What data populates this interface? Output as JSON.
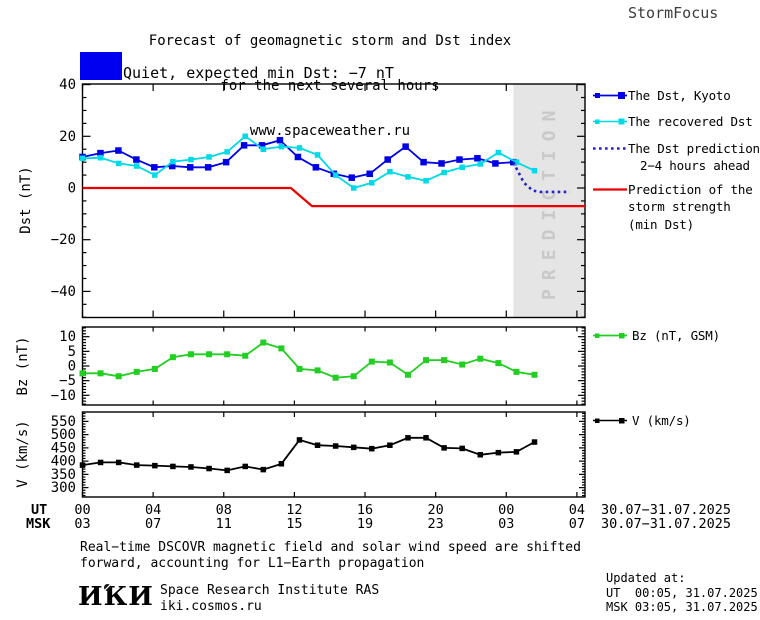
{
  "header": {
    "title_line1": "Forecast of geomagnetic storm and Dst index",
    "title_line2": "for the next several hours",
    "title_line3": "www.spaceweather.ru",
    "brand": "StormFocus"
  },
  "status": {
    "label": "Quiet, expected min Dst: −7 nT"
  },
  "colors": {
    "status_blue": "#0000F0",
    "kyoto_blue": "#0000E6",
    "recovered_cyan": "#00D9E8",
    "prediction_blue": "#2222CC",
    "storm_red": "#EE0000",
    "bz_green": "#21CE21",
    "v_black": "#000000",
    "band_gray": "#E5E5E5",
    "band_text_gray": "#C9C9C9"
  },
  "legend_main": {
    "kyoto": "The Dst, Kyoto",
    "recovered": "The recovered Dst",
    "prediction_line1": "The Dst prediction",
    "prediction_line2": "2−4 hours ahead",
    "storm_line1": "Prediction of the",
    "storm_line2": "storm strength",
    "storm_line3": "(min Dst)"
  },
  "legend_bz": "Bz (nT, GSM)",
  "legend_v": "V (km/s)",
  "time_axis": {
    "ut_label": "UT",
    "msk_label": "MSK",
    "ticks": [
      {
        "h": 0,
        "ut": "00",
        "msk": "03"
      },
      {
        "h": 4,
        "ut": "04",
        "msk": "07"
      },
      {
        "h": 8,
        "ut": "08",
        "msk": "11"
      },
      {
        "h": 12,
        "ut": "12",
        "msk": "15"
      },
      {
        "h": 16,
        "ut": "16",
        "msk": "19"
      },
      {
        "h": 20,
        "ut": "20",
        "msk": "23"
      },
      {
        "h": 24,
        "ut": "00",
        "msk": "03"
      },
      {
        "h": 28,
        "ut": "04",
        "msk": "07"
      }
    ],
    "ut_date": "30.07−31.07.2025",
    "msk_date": "30.07−31.07.2025"
  },
  "chart_data": [
    {
      "type": "line",
      "panel": "dst",
      "ylabel": "Dst (nT)",
      "ylim": [
        -50,
        40
      ],
      "yticks": [
        {
          "v": 40,
          "label": "40"
        },
        {
          "v": 20,
          "label": "20"
        },
        {
          "v": 0,
          "label": "0"
        },
        {
          "v": -20,
          "label": "−20"
        },
        {
          "v": -40,
          "label": "−40"
        }
      ],
      "y_minor_step": 5,
      "xlim_hours": [
        0,
        28.46
      ],
      "x_tick_hours_utc": [
        "00",
        "04",
        "08",
        "12",
        "16",
        "20",
        "00",
        "04"
      ],
      "prediction_band": {
        "t_start": 24.4,
        "label": "PREDICTION"
      },
      "series": [
        {
          "name": "The Dst, Kyoto",
          "color_key": "kyoto_blue",
          "marker": "square",
          "marker_size": 6.5,
          "t0": 0,
          "dt": 1.0167,
          "values": [
            12,
            13.5,
            14.5,
            11,
            8,
            8.5,
            8,
            8,
            10,
            16.5,
            16.5,
            18.5,
            12,
            8,
            5.5,
            4,
            5.5,
            11,
            16,
            10,
            9.5,
            11,
            11.5,
            9.5,
            10
          ]
        },
        {
          "name": "The recovered Dst",
          "color_key": "recovered_cyan",
          "marker": "square",
          "marker_size": 5.5,
          "t0": 0,
          "dt": 1.024,
          "values": [
            11.5,
            11.7,
            9.5,
            8.5,
            5,
            10.2,
            11,
            12,
            14,
            20,
            15,
            16,
            15.5,
            12.8,
            5,
            0,
            2,
            6.3,
            4.3,
            2.8,
            6,
            8,
            9.3,
            13.7,
            10,
            6.7
          ]
        },
        {
          "name": "The Dst prediction 2−4 hours ahead",
          "color_key": "prediction_blue",
          "style": "dotted",
          "points": [
            [
              24.4,
              10
            ],
            [
              25.0,
              2
            ],
            [
              25.5,
              -1
            ],
            [
              25.9,
              -1.5
            ],
            [
              27.6,
              -1.5
            ]
          ]
        },
        {
          "name": "Prediction of the storm strength (min Dst)",
          "color_key": "storm_red",
          "style": "solid",
          "width": 2.2,
          "points": [
            [
              0,
              0
            ],
            [
              11.8,
              0
            ],
            [
              13.0,
              -7
            ],
            [
              28.46,
              -7
            ]
          ]
        }
      ]
    },
    {
      "type": "line",
      "panel": "bz",
      "ylabel": "Bz (nT)",
      "ylim": [
        -13.3,
        13.3
      ],
      "yticks": [
        {
          "v": 10,
          "label": "10"
        },
        {
          "v": 5,
          "label": "5"
        },
        {
          "v": 0,
          "label": "0"
        },
        {
          "v": -5,
          "label": "−5"
        },
        {
          "v": -10,
          "label": "−10"
        }
      ],
      "y_minor_step": 1,
      "xlim_hours": [
        0,
        28.46
      ],
      "series": [
        {
          "name": "Bz (nT, GSM)",
          "color_key": "bz_green",
          "marker": "square",
          "marker_size": 6,
          "t0": 0,
          "dt": 1.024,
          "values": [
            -2.5,
            -2.5,
            -3.5,
            -2,
            -1,
            3,
            4,
            4,
            4,
            3.5,
            8,
            6,
            -1,
            -1.5,
            -4,
            -3.5,
            1.5,
            1.2,
            -3,
            2,
            2,
            0.5,
            2.5,
            1,
            -2,
            -3
          ]
        }
      ]
    },
    {
      "type": "line",
      "panel": "v",
      "ylabel": "V (km/s)",
      "ylim": [
        264,
        586
      ],
      "yticks": [
        {
          "v": 550,
          "label": "550"
        },
        {
          "v": 500,
          "label": "500"
        },
        {
          "v": 450,
          "label": "450"
        },
        {
          "v": 400,
          "label": "400"
        },
        {
          "v": 350,
          "label": "350"
        },
        {
          "v": 300,
          "label": "300"
        }
      ],
      "y_minor_step": 10,
      "xlim_hours": [
        0,
        28.46
      ],
      "series": [
        {
          "name": "V (km/s)",
          "color_key": "v_black",
          "marker": "square",
          "marker_size": 5.5,
          "t0": 0,
          "dt": 1.024,
          "values": [
            385,
            395,
            395,
            385,
            383,
            380,
            378,
            372,
            365,
            380,
            368,
            390,
            480,
            460,
            457,
            452,
            447,
            460,
            488,
            488,
            450,
            448,
            424,
            432,
            435,
            472
          ]
        }
      ]
    }
  ],
  "footer": {
    "note_line1": "Real−time DSCOVR magnetic field and solar wind speed are shifted",
    "note_line2": "forward, accounting for L1−Earth propagation",
    "logo_text": "ИКИ",
    "institute": "Space Research Institute RAS",
    "site": "iki.cosmos.ru",
    "updated_label": "Updated at:",
    "updated_ut": "UT  00:05, 31.07.2025",
    "updated_msk": "MSK 03:05, 31.07.2025"
  }
}
